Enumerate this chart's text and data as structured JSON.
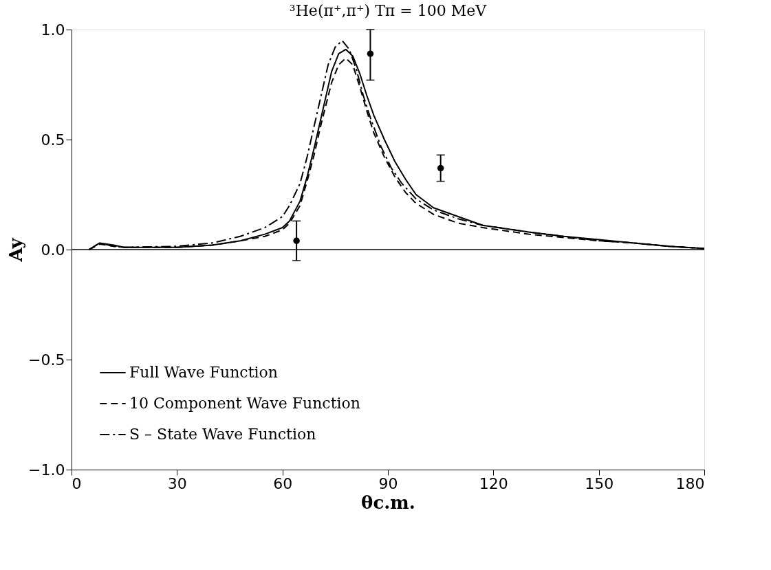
{
  "chart_data": {
    "type": "line",
    "title": "³He(π⁺,π⁺)   Tπ = 100 MeV",
    "xlabel": "θc.m.",
    "ylabel": "Ay",
    "xlim": [
      0,
      180
    ],
    "xticks": [
      0,
      30,
      60,
      90,
      120,
      150,
      180
    ],
    "ylim": [
      -1.0,
      1.0
    ],
    "yticks": [
      {
        "value": -1.0,
        "label": "−1.0"
      },
      {
        "value": -0.5,
        "label": "−0.5"
      },
      {
        "value": 0,
        "label": "0.0"
      },
      {
        "value": 0.5,
        "label": "0.5"
      },
      {
        "value": 1.0,
        "label": "1.0"
      }
    ],
    "grid": false,
    "legend": "bottom left",
    "ref_lines": [
      {
        "axis": "y",
        "value": 0,
        "color": "#000000"
      }
    ],
    "series": [
      {
        "name": "Full Wave Function",
        "line_style": "solid",
        "color": "#000000",
        "x": [
          5,
          8,
          12,
          15,
          30,
          40,
          48,
          55,
          60,
          62,
          65,
          67,
          69,
          71,
          74,
          76,
          78,
          80,
          82,
          84,
          86,
          89,
          92,
          95,
          98,
          103,
          110,
          117,
          130,
          140,
          150,
          160,
          170,
          180
        ],
        "values": [
          0,
          0.03,
          0.02,
          0.01,
          0.01,
          0.02,
          0.04,
          0.07,
          0.1,
          0.13,
          0.22,
          0.33,
          0.46,
          0.6,
          0.81,
          0.89,
          0.91,
          0.88,
          0.8,
          0.7,
          0.61,
          0.5,
          0.4,
          0.32,
          0.25,
          0.19,
          0.15,
          0.11,
          0.08,
          0.06,
          0.045,
          0.03,
          0.015,
          0.005
        ]
      },
      {
        "name": "10 Component Wave Function",
        "line_style": "dashed",
        "color": "#000000",
        "x": [
          5,
          8,
          12,
          15,
          30,
          40,
          48,
          55,
          60,
          62,
          65,
          67,
          69,
          71,
          74,
          76,
          78,
          80,
          82,
          84,
          86,
          89,
          92,
          95,
          98,
          103,
          110,
          117,
          130,
          140,
          150,
          160,
          170,
          180
        ],
        "values": [
          0,
          0.025,
          0.015,
          0.01,
          0.01,
          0.02,
          0.04,
          0.06,
          0.09,
          0.12,
          0.2,
          0.31,
          0.43,
          0.57,
          0.76,
          0.84,
          0.87,
          0.84,
          0.74,
          0.63,
          0.53,
          0.42,
          0.33,
          0.26,
          0.21,
          0.16,
          0.12,
          0.1,
          0.07,
          0.055,
          0.04,
          0.03,
          0.015,
          0.005
        ]
      },
      {
        "name": "S – State Wave Function",
        "line_style": "dashdot",
        "color": "#000000",
        "x": [
          5,
          8,
          12,
          15,
          30,
          40,
          48,
          55,
          60,
          62,
          65,
          67,
          69,
          71,
          73,
          75,
          77,
          79,
          81,
          83,
          85,
          88,
          91,
          94,
          98,
          103,
          110,
          117,
          130,
          140,
          150,
          160,
          170,
          180
        ],
        "values": [
          0,
          0.03,
          0.015,
          0.01,
          0.015,
          0.03,
          0.06,
          0.1,
          0.15,
          0.2,
          0.3,
          0.42,
          0.56,
          0.7,
          0.84,
          0.92,
          0.95,
          0.91,
          0.82,
          0.7,
          0.6,
          0.47,
          0.37,
          0.3,
          0.23,
          0.18,
          0.14,
          0.11,
          0.08,
          0.06,
          0.04,
          0.03,
          0.015,
          0.005
        ]
      },
      {
        "type": "scatter",
        "marker": "circle",
        "color": "#000000",
        "x": [
          64,
          85,
          105
        ],
        "values": [
          0.04,
          0.89,
          0.37
        ],
        "errors": [
          [
            -0.05,
            0.13
          ],
          [
            0.77,
            1.0
          ],
          [
            0.31,
            0.43
          ]
        ]
      }
    ]
  }
}
